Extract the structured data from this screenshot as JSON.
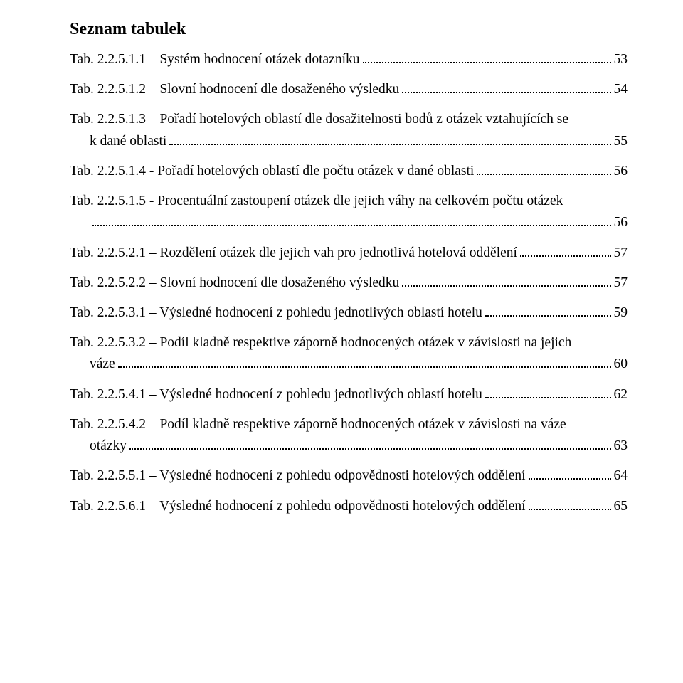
{
  "title": "Seznam tabulek",
  "font": {
    "family": "Times New Roman",
    "title_size_pt": 18,
    "body_size_pt": 14.5,
    "color": "#000000"
  },
  "background_color": "#ffffff",
  "leader_color": "#000000",
  "entries": [
    {
      "label": "Tab. 2.2.5.1.1 – Systém hodnocení otázek dotazníku",
      "page": "53",
      "wrap": false
    },
    {
      "label": "Tab. 2.2.5.1.2 – Slovní hodnocení dle dosaženého výsledku",
      "page": "54",
      "wrap": false
    },
    {
      "label": "Tab. 2.2.5.1.3 – Pořadí hotelových oblastí dle dosažitelnosti bodů z otázek vztahujících se",
      "cont": "k dané oblasti",
      "page": "55",
      "wrap": true
    },
    {
      "label": "Tab. 2.2.5.1.4 - Pořadí hotelových oblastí dle počtu otázek v dané oblasti",
      "page": "56",
      "wrap": false
    },
    {
      "label": "Tab. 2.2.5.1.5 - Procentuální zastoupení otázek dle jejich váhy na celkovém počtu otázek",
      "cont": "",
      "page": "56",
      "wrap": true
    },
    {
      "label": "Tab. 2.2.5.2.1 – Rozdělení otázek dle jejich vah pro jednotlivá hotelová oddělení",
      "page": "57",
      "wrap": false
    },
    {
      "label": "Tab. 2.2.5.2.2 – Slovní hodnocení dle dosaženého výsledku",
      "page": "57",
      "wrap": false
    },
    {
      "label": "Tab. 2.2.5.3.1 – Výsledné hodnocení z pohledu jednotlivých oblastí hotelu",
      "page": "59",
      "wrap": false
    },
    {
      "label": "Tab. 2.2.5.3.2 – Podíl kladně respektive záporně hodnocených otázek v závislosti na jejich",
      "cont": "váze",
      "page": "60",
      "wrap": true
    },
    {
      "label": "Tab. 2.2.5.4.1 – Výsledné hodnocení z pohledu jednotlivých oblastí hotelu",
      "page": "62",
      "wrap": false
    },
    {
      "label": "Tab. 2.2.5.4.2 – Podíl kladně respektive záporně hodnocených otázek v závislosti na váze",
      "cont": "otázky",
      "page": "63",
      "wrap": true
    },
    {
      "label": "Tab. 2.2.5.5.1 – Výsledné hodnocení z pohledu odpovědnosti hotelových oddělení",
      "page": "64",
      "wrap": false
    },
    {
      "label": "Tab. 2.2.5.6.1 – Výsledné hodnocení z pohledu odpovědnosti hotelových oddělení",
      "page": "65",
      "wrap": false
    }
  ]
}
